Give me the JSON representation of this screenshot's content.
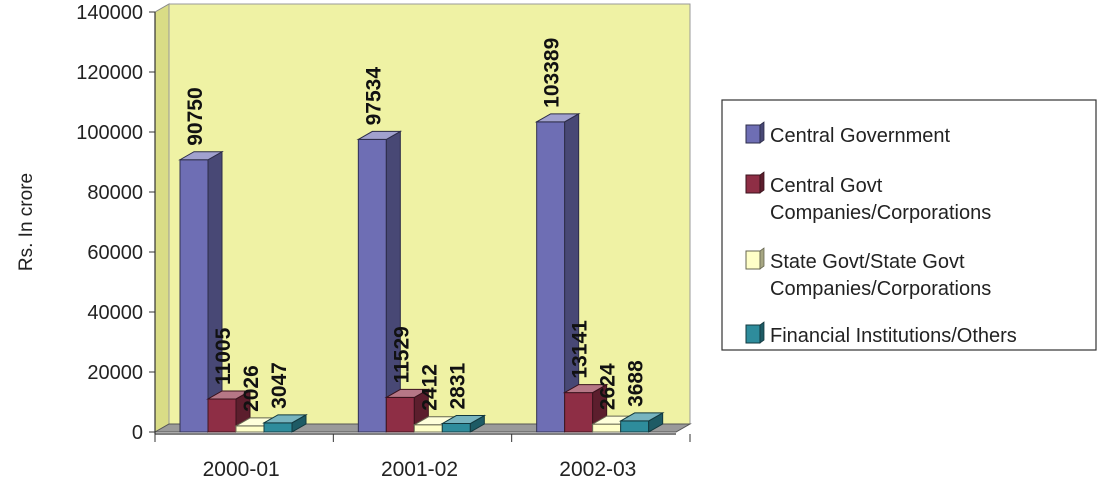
{
  "chart_data": {
    "type": "bar",
    "title": "",
    "xlabel": "",
    "ylabel": "Rs. In crore",
    "ylim": [
      0,
      140000
    ],
    "yticks": [
      0,
      20000,
      40000,
      60000,
      80000,
      100000,
      120000,
      140000
    ],
    "ytick_labels": [
      "0",
      "20000",
      "40000",
      "60000",
      "80000",
      "100000",
      "120000",
      "140000"
    ],
    "categories": [
      "2000-01",
      "2001-02",
      "2002-03"
    ],
    "series": [
      {
        "name": "Central Government",
        "values": [
          90750,
          97534,
          103389
        ],
        "labels": [
          "90750",
          "97534",
          "103389"
        ],
        "color": "#6E6EB4"
      },
      {
        "name": "Central Govt Companies/Corporations",
        "legend_lines": [
          "Central Govt",
          "Companies/Corporations"
        ],
        "values": [
          11005,
          11529,
          13141
        ],
        "labels": [
          "11005",
          "11529",
          "13141"
        ],
        "color": "#8E2E45"
      },
      {
        "name": "State Govt/State Govt Companies/Corporations",
        "legend_lines": [
          "State Govt/State Govt",
          "Companies/Corporations"
        ],
        "values": [
          2026,
          2412,
          2624
        ],
        "labels": [
          "2026",
          "2412",
          "2624"
        ],
        "color": "#FFFFC8"
      },
      {
        "name": "Financial Institutions/Others",
        "legend_lines": [
          "Financial Institutions/Others"
        ],
        "values": [
          3047,
          2831,
          3688
        ],
        "labels": [
          "3047",
          "2831",
          "3688"
        ],
        "color": "#2E8C9C"
      }
    ],
    "grid": false,
    "legend_position": "right",
    "colors": {
      "plot_background": "#EFF2A4",
      "wall_side": "#D9DC86",
      "floor": "#9A9A9A",
      "axis": "#333333"
    }
  }
}
